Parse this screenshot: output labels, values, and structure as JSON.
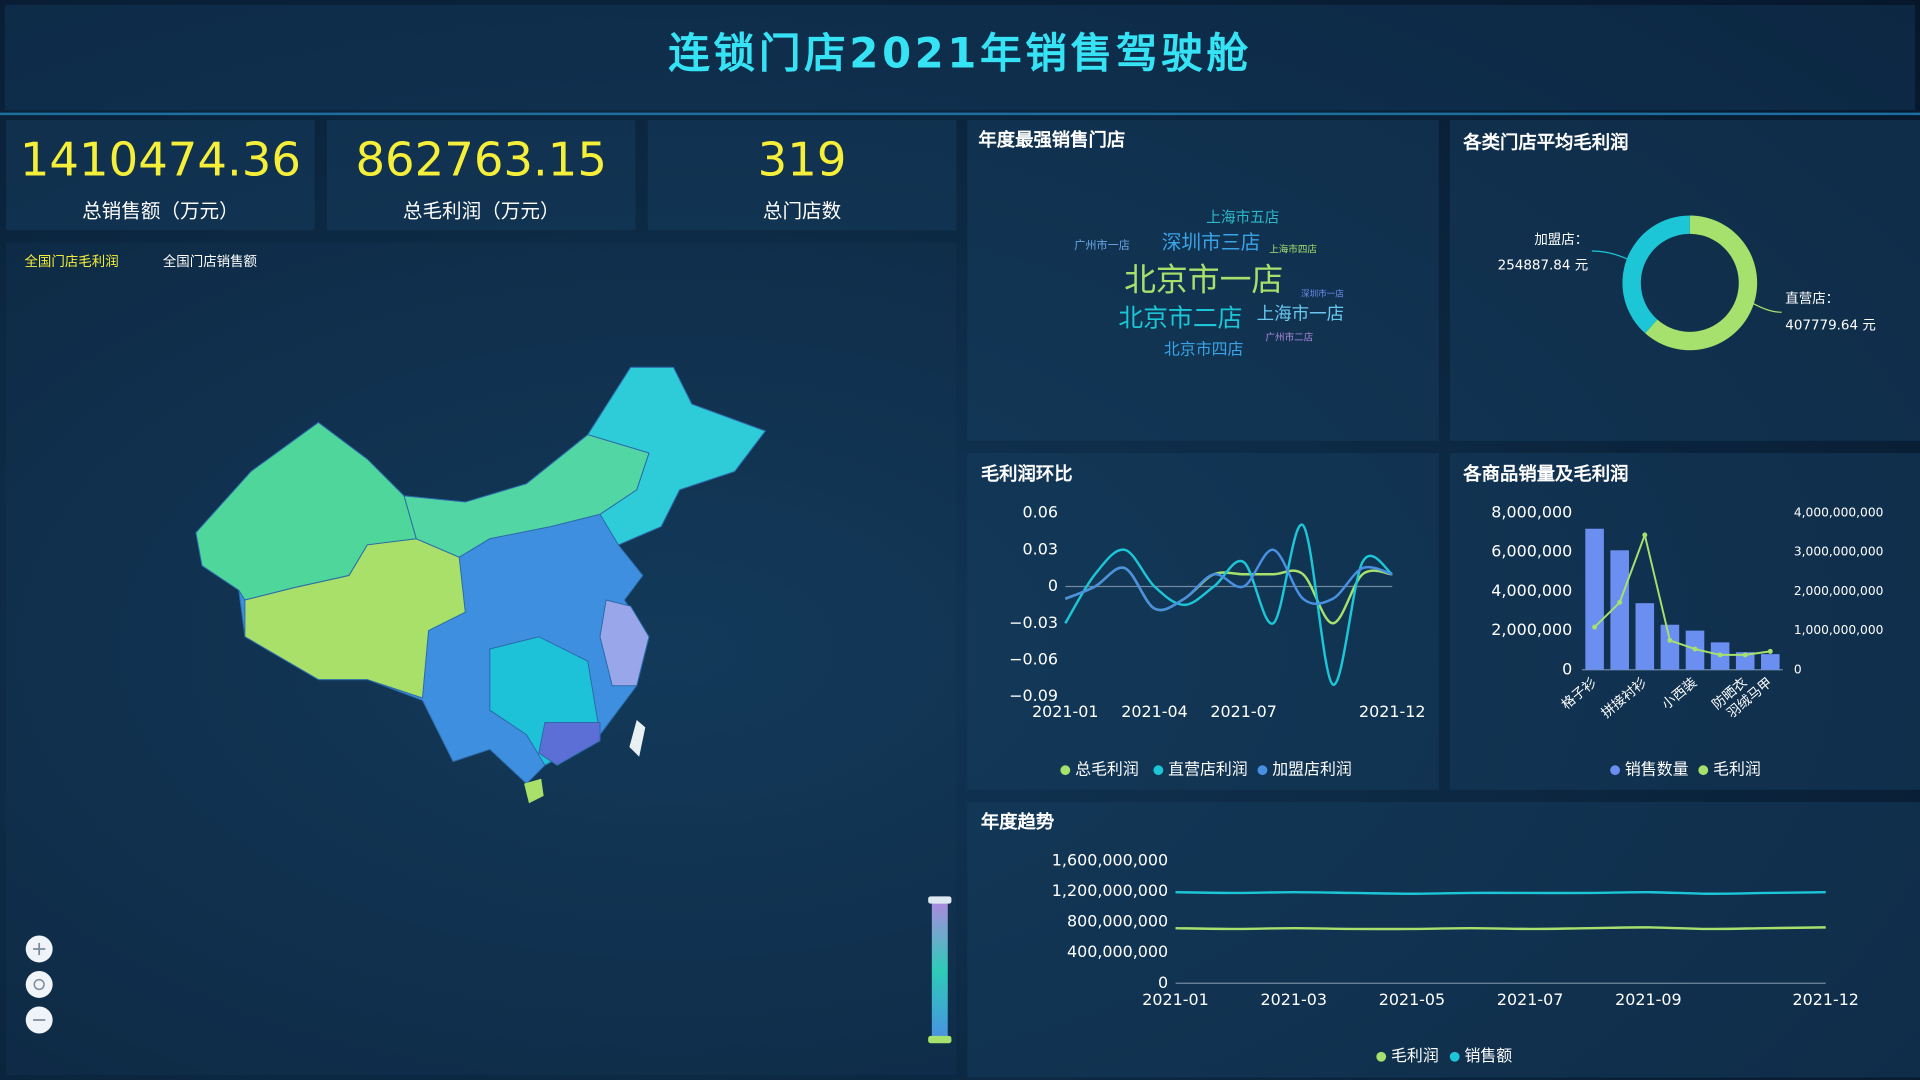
{
  "header": {
    "title": "连锁门店2021年销售驾驶舱"
  },
  "kpis": [
    {
      "value": 1410474.36,
      "label": "总销售额（万元）"
    },
    {
      "value": 862763.15,
      "label": "总毛利润（万元）"
    },
    {
      "value": 319,
      "label": "总门店数"
    }
  ],
  "map": {
    "tabs": [
      "全国门店毛利润",
      "全国门店销售额"
    ]
  },
  "chart_data": [
    {
      "type": "wordcloud",
      "title": "年度最强销售门店",
      "words": [
        {
          "text": "上海市五店",
          "value": 46,
          "color": "#2bb8c8"
        },
        {
          "text": "广州市一店",
          "value": 35,
          "color": "#6aa8e8"
        },
        {
          "text": "深圳市三店",
          "value": 62,
          "color": "#3aa3e8"
        },
        {
          "text": "上海市四店",
          "value": 30,
          "color": "#a5e16c"
        },
        {
          "text": "北京市一店",
          "value": 100,
          "color": "#a5e16c"
        },
        {
          "text": "深圳市一店",
          "value": 27,
          "color": "#6b8ff0"
        },
        {
          "text": "北京市二店",
          "value": 78,
          "color": "#1cc6d6"
        },
        {
          "text": "上海市一店",
          "value": 55,
          "color": "#6ac8f0"
        },
        {
          "text": "广州市二店",
          "value": 30,
          "color": "#b088e0"
        },
        {
          "text": "北京市四店",
          "value": 50,
          "color": "#3aa3e8"
        }
      ]
    },
    {
      "type": "pie",
      "title": "各类门店平均毛利润",
      "categories": [
        "直营店：",
        "加盟店："
      ],
      "values": [
        407779.64,
        254887.84
      ],
      "value_labels": [
        "407779.64 元",
        "254887.84 元"
      ],
      "colors": [
        "#a5e16c",
        "#1cc6d6"
      ]
    },
    {
      "type": "line",
      "title": "毛利润环比",
      "categories": [
        "2021-01",
        null,
        null,
        "2021-04",
        null,
        null,
        "2021-07",
        null,
        null,
        null,
        null,
        "2021-12"
      ],
      "ylim": [
        -0.09,
        0.06
      ],
      "yticks": [
        {
          "value": -0.09,
          "label": "−0.09"
        },
        {
          "value": -0.06,
          "label": "−0.06"
        },
        {
          "value": -0.03,
          "label": "−0.03"
        },
        0,
        0.03,
        0.06
      ],
      "series": [
        {
          "name": "总毛利润",
          "color": "#a5e16c",
          "values": [
            -0.01,
            0.0,
            0.015,
            -0.018,
            -0.01,
            0.01,
            0.01,
            0.01,
            0.01,
            -0.03,
            0.01,
            0.01
          ]
        },
        {
          "name": "直营店利润",
          "color": "#1cc6d6",
          "values": [
            -0.03,
            0.01,
            0.03,
            0.0,
            -0.015,
            0.0,
            0.02,
            -0.03,
            0.05,
            -0.08,
            0.02,
            0.01
          ]
        },
        {
          "name": "加盟店利润",
          "color": "#4a90e2",
          "values": [
            -0.01,
            0.0,
            0.015,
            -0.018,
            -0.01,
            0.01,
            0.0,
            0.03,
            -0.01,
            -0.01,
            0.015,
            0.01
          ]
        }
      ]
    },
    {
      "type": "bar",
      "title": "各商品销量及毛利润",
      "categories": [
        "格子衫",
        null,
        "拼接衬衫",
        null,
        "小西装",
        null,
        "防晒衣",
        "羽绒马甲"
      ],
      "ylim": [
        0,
        8000000
      ],
      "yticks": [
        0,
        {
          "value": 2000000,
          "label": "2,000,000"
        },
        {
          "value": 4000000,
          "label": "4,000,000"
        },
        {
          "value": 6000000,
          "label": "6,000,000"
        },
        {
          "value": 8000000,
          "label": "8,000,000"
        }
      ],
      "y2lim": [
        0,
        4000000000
      ],
      "y2ticks": [
        0,
        {
          "value": 1000000000,
          "label": "1,000,000,000"
        },
        {
          "value": 2000000000,
          "label": "2,000,000,000"
        },
        {
          "value": 3000000000,
          "label": "3,000,000,000"
        },
        {
          "value": 4000000000,
          "label": "4,000,000,000"
        }
      ],
      "series": [
        {
          "name": "销售数量",
          "type": "bar",
          "color": "#6b8ff0",
          "values": [
            7200000,
            6100000,
            3400000,
            2300000,
            2000000,
            1400000,
            900000,
            800000
          ]
        },
        {
          "name": "毛利润",
          "type": "line",
          "axis": "y2",
          "color": "#a5e16c",
          "values": [
            1090000000,
            1720000000,
            3440000000,
            750000000,
            530000000,
            380000000,
            380000000,
            470000000
          ]
        }
      ]
    },
    {
      "type": "line",
      "title": "年度趋势",
      "categories": [
        "2021-01",
        null,
        "2021-03",
        null,
        "2021-05",
        null,
        "2021-07",
        null,
        "2021-09",
        null,
        null,
        "2021-12"
      ],
      "ylim": [
        0,
        1600000000
      ],
      "yticks": [
        0,
        {
          "value": 400000000,
          "label": "400,000,000"
        },
        {
          "value": 800000000,
          "label": "800,000,000"
        },
        {
          "value": 1200000000,
          "label": "1,200,000,000"
        },
        {
          "value": 1600000000,
          "label": "1,600,000,000"
        }
      ],
      "series": [
        {
          "name": "毛利润",
          "color": "#a5e16c",
          "values": [
            720000000,
            710000000,
            720000000,
            710000000,
            710000000,
            720000000,
            710000000,
            720000000,
            730000000,
            710000000,
            720000000,
            730000000
          ]
        },
        {
          "name": "销售额",
          "color": "#1cc6d6",
          "values": [
            1190000000,
            1180000000,
            1190000000,
            1180000000,
            1170000000,
            1180000000,
            1180000000,
            1180000000,
            1190000000,
            1170000000,
            1180000000,
            1190000000
          ]
        }
      ]
    }
  ]
}
